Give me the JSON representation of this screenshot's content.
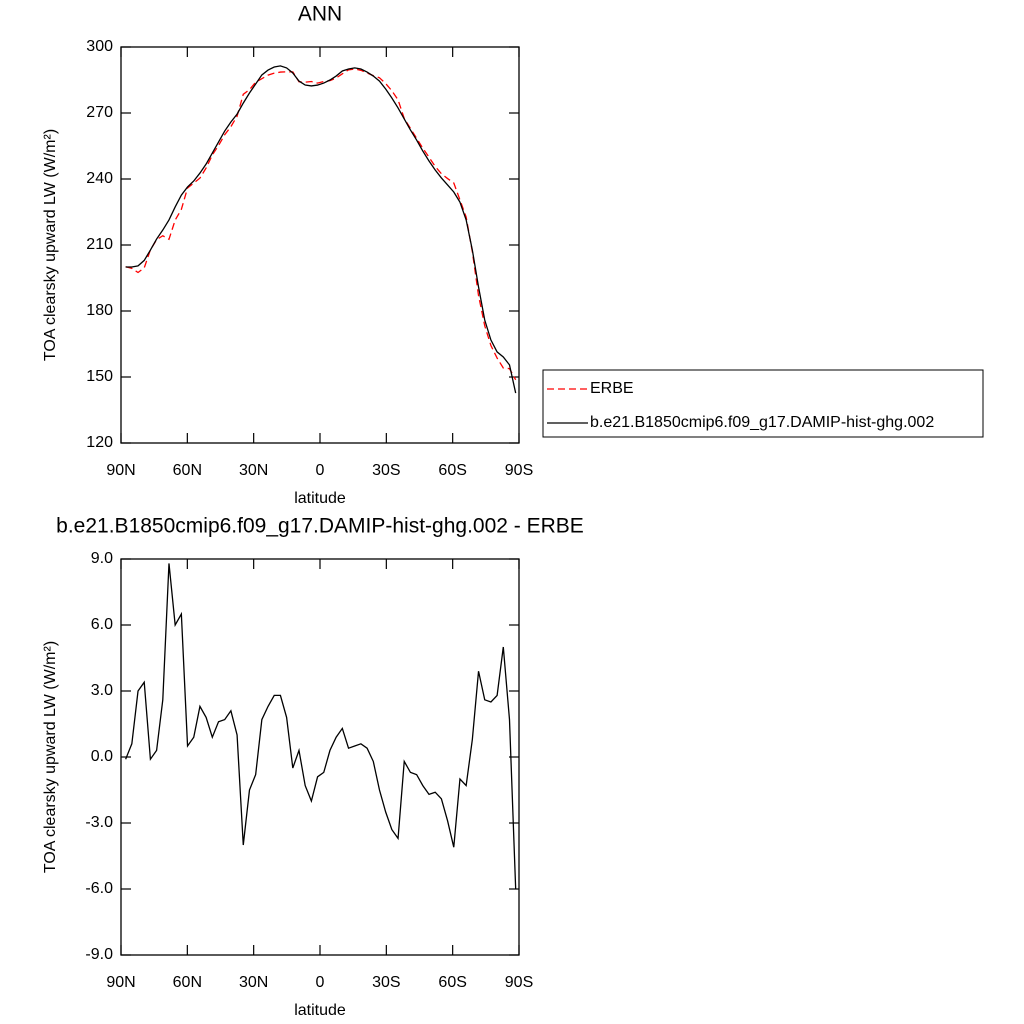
{
  "chart_data": [
    {
      "type": "line",
      "title": "ANN",
      "xlabel": "latitude",
      "ylabel": "TOA clearsky upward LW (W/m²)",
      "x": [
        87.9,
        85.1,
        82.3,
        79.5,
        76.7,
        73.9,
        71.1,
        68.3,
        65.5,
        62.7,
        59.9,
        57.1,
        54.3,
        51.5,
        48.7,
        45.9,
        43.1,
        40.3,
        37.5,
        34.7,
        31.9,
        29.1,
        26.3,
        23.5,
        20.7,
        17.9,
        15.1,
        12.3,
        9.5,
        6.7,
        3.9,
        1.1,
        -1.7,
        -4.5,
        -7.3,
        -10.1,
        -12.9,
        -15.7,
        -18.5,
        -21.3,
        -24.1,
        -26.9,
        -29.7,
        -32.5,
        -35.3,
        -38.1,
        -40.9,
        -43.7,
        -46.5,
        -49.3,
        -52.1,
        -54.9,
        -57.7,
        -60.5,
        -63.3,
        -66.1,
        -68.9,
        -71.7,
        -74.5,
        -77.3,
        -80.1,
        -82.9,
        -85.7,
        -88.5
      ],
      "series": [
        {
          "name": "ERBE",
          "color": "#ff0000",
          "dashed": true,
          "values": [
            200.1,
            199.4,
            197.5,
            199.6,
            207.8,
            212.4,
            214.2,
            212.6,
            221.3,
            226.2,
            235.9,
            238.2,
            240.4,
            245.0,
            250.9,
            255.2,
            260.1,
            263.8,
            268.5,
            278.5,
            280.6,
            284.0,
            285.6,
            287.2,
            288.1,
            288.6,
            288.7,
            288.7,
            284.2,
            284.0,
            284.3,
            283.6,
            284.3,
            284.7,
            285.9,
            287.8,
            289.6,
            290.0,
            289.4,
            288.2,
            287.0,
            286.0,
            283.4,
            280.1,
            276.0,
            267.5,
            263.0,
            258.5,
            254.0,
            249.9,
            245.7,
            242.4,
            240.2,
            238.2,
            230.5,
            222.7,
            206.9,
            187.0,
            173.3,
            164.3,
            158.6,
            154.1,
            153.8,
            148.7
          ]
        },
        {
          "name": "b.e21.B1850cmip6.f09_g17.DAMIP-hist-ghg.002",
          "color": "#000000",
          "dashed": false,
          "values": [
            200.0,
            200.0,
            200.5,
            203.0,
            207.7,
            212.7,
            216.8,
            221.4,
            227.3,
            232.7,
            236.4,
            239.1,
            242.7,
            246.8,
            251.8,
            256.8,
            261.8,
            265.9,
            269.5,
            274.5,
            279.1,
            283.2,
            287.3,
            289.5,
            290.9,
            291.4,
            290.5,
            288.2,
            284.5,
            282.7,
            282.3,
            282.7,
            283.6,
            285.0,
            286.8,
            289.1,
            290.0,
            290.5,
            290.0,
            288.6,
            286.8,
            284.5,
            280.9,
            276.8,
            272.3,
            267.3,
            262.3,
            257.7,
            252.7,
            248.2,
            244.1,
            240.5,
            237.3,
            234.1,
            229.5,
            221.4,
            207.7,
            190.9,
            175.9,
            166.8,
            161.4,
            159.1,
            155.5,
            142.7
          ]
        }
      ],
      "xlim": [
        90,
        -90
      ],
      "xticks": [
        {
          "value": 90,
          "label": "90N"
        },
        {
          "value": 60,
          "label": "60N"
        },
        {
          "value": 30,
          "label": "30N"
        },
        0,
        {
          "value": -30,
          "label": "30S"
        },
        {
          "value": -60,
          "label": "60S"
        },
        {
          "value": -90,
          "label": "90S"
        }
      ],
      "ylim": [
        120,
        300
      ],
      "yticks": [
        120,
        150,
        180,
        210,
        240,
        270,
        300
      ],
      "legend": "right"
    },
    {
      "type": "line",
      "title": "b.e21.B1850cmip6.f09_g17.DAMIP-hist-ghg.002 - ERBE",
      "xlabel": "latitude",
      "ylabel": "TOA clearsky upward LW (W/m²)",
      "x": [
        87.9,
        85.1,
        82.3,
        79.5,
        76.7,
        73.9,
        71.1,
        68.3,
        65.5,
        62.7,
        59.9,
        57.1,
        54.3,
        51.5,
        48.7,
        45.9,
        43.1,
        40.3,
        37.5,
        34.7,
        31.9,
        29.1,
        26.3,
        23.5,
        20.7,
        17.9,
        15.1,
        12.3,
        9.5,
        6.7,
        3.9,
        1.1,
        -1.7,
        -4.5,
        -7.3,
        -10.1,
        -12.9,
        -15.7,
        -18.5,
        -21.3,
        -24.1,
        -26.9,
        -29.7,
        -32.5,
        -35.3,
        -38.1,
        -40.9,
        -43.7,
        -46.5,
        -49.3,
        -52.1,
        -54.9,
        -57.7,
        -60.5,
        -63.3,
        -66.1,
        -68.9,
        -71.7,
        -74.5,
        -77.3,
        -80.1,
        -82.9,
        -85.7,
        -88.5
      ],
      "color": "#000000",
      "values": [
        -0.1,
        0.6,
        3.0,
        3.4,
        -0.1,
        0.3,
        2.6,
        8.8,
        6.0,
        6.5,
        0.5,
        0.9,
        2.3,
        1.8,
        0.9,
        1.6,
        1.7,
        2.1,
        1.0,
        -4.0,
        -1.5,
        -0.8,
        1.7,
        2.3,
        2.8,
        2.8,
        1.8,
        -0.5,
        0.3,
        -1.3,
        -2.0,
        -0.9,
        -0.7,
        0.3,
        0.9,
        1.3,
        0.4,
        0.5,
        0.6,
        0.4,
        -0.2,
        -1.5,
        -2.5,
        -3.3,
        -3.7,
        -0.2,
        -0.7,
        -0.8,
        -1.3,
        -1.7,
        -1.6,
        -1.9,
        -2.9,
        -4.1,
        -1.0,
        -1.3,
        0.8,
        3.9,
        2.6,
        2.5,
        2.8,
        5.0,
        1.7,
        -6.0
      ],
      "xlim": [
        90,
        -90
      ],
      "xticks": [
        {
          "value": 90,
          "label": "90N"
        },
        {
          "value": 60,
          "label": "60N"
        },
        {
          "value": 30,
          "label": "30N"
        },
        0,
        {
          "value": -30,
          "label": "30S"
        },
        {
          "value": -60,
          "label": "60S"
        },
        {
          "value": -90,
          "label": "90S"
        }
      ],
      "ylim": [
        -9,
        9
      ],
      "yticks": [
        {
          "value": -9,
          "label": "-9.0"
        },
        {
          "value": -6,
          "label": "-6.0"
        },
        {
          "value": -3,
          "label": "-3.0"
        },
        {
          "value": 0,
          "label": "0.0"
        },
        {
          "value": 3,
          "label": "3.0"
        },
        {
          "value": 6,
          "label": "6.0"
        },
        {
          "value": 9,
          "label": "9.0"
        }
      ]
    }
  ]
}
